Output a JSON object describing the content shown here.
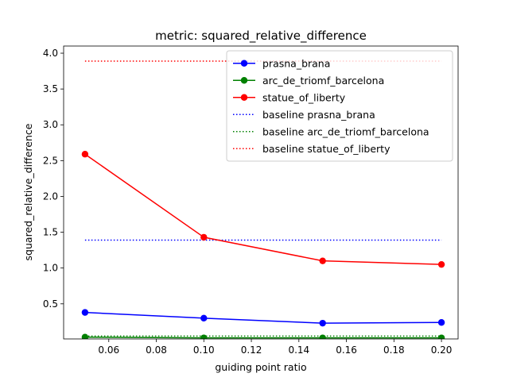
{
  "chart_data": {
    "type": "line",
    "title": "metric: squared_relative_difference",
    "xlabel": "guiding point ratio",
    "ylabel": "squared_relative_difference",
    "xlim": [
      0.041,
      0.207
    ],
    "ylim": [
      0.01,
      4.1
    ],
    "x_ticks": [
      0.06,
      0.08,
      0.1,
      0.12,
      0.14,
      0.16,
      0.18,
      0.2
    ],
    "x_tick_labels": [
      "0.06",
      "0.08",
      "0.10",
      "0.12",
      "0.14",
      "0.16",
      "0.18",
      "0.20"
    ],
    "y_ticks": [
      0.5,
      1.0,
      1.5,
      2.0,
      2.5,
      3.0,
      3.5,
      4.0
    ],
    "y_tick_labels": [
      "0.5",
      "1.0",
      "1.5",
      "2.0",
      "2.5",
      "3.0",
      "3.5",
      "4.0"
    ],
    "grid": false,
    "legend_position": "top-right",
    "x": [
      0.05,
      0.1,
      0.15,
      0.2
    ],
    "series": [
      {
        "name": "prasna_brana",
        "color": "#0000ff",
        "style": "line-marker",
        "values": [
          0.38,
          0.3,
          0.23,
          0.24
        ]
      },
      {
        "name": "arc_de_triomf_barcelona",
        "color": "#008000",
        "style": "line-marker",
        "values": [
          0.035,
          0.025,
          0.025,
          0.025
        ]
      },
      {
        "name": "statue_of_liberty",
        "color": "#ff0000",
        "style": "line-marker",
        "values": [
          2.59,
          1.43,
          1.1,
          1.05
        ]
      },
      {
        "name": "baseline prasna_brana",
        "color": "#0000ff",
        "style": "dotted",
        "values": [
          1.39,
          1.39,
          1.39,
          1.39
        ]
      },
      {
        "name": "baseline arc_de_triomf_barcelona",
        "color": "#008000",
        "style": "dotted",
        "values": [
          0.05,
          0.05,
          0.05,
          0.05
        ]
      },
      {
        "name": "baseline statue_of_liberty",
        "color": "#ff0000",
        "style": "dotted",
        "values": [
          3.89,
          3.89,
          3.89,
          3.89
        ]
      }
    ]
  }
}
